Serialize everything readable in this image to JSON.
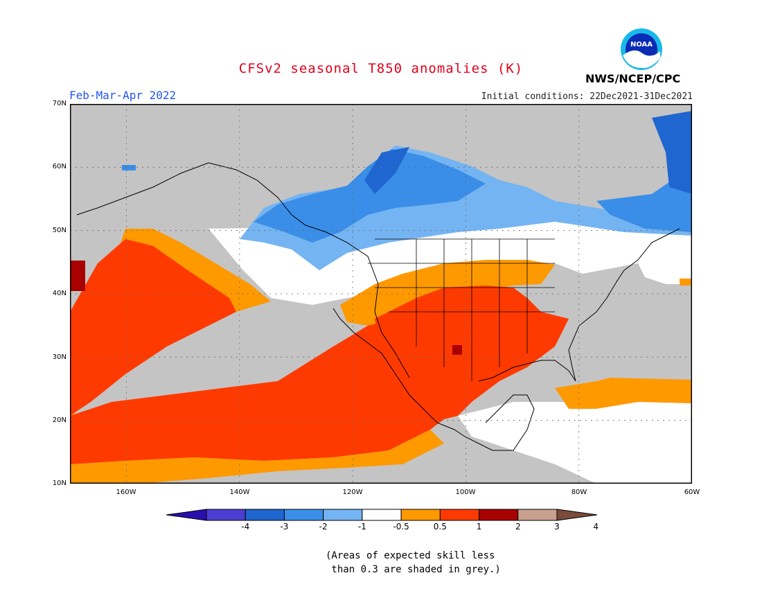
{
  "header": {
    "title": "CFSv2 seasonal T850 anomalies (K)",
    "period": "Feb-Mar-Apr 2022",
    "initial_conditions": "Initial conditions: 22Dec2021-31Dec2021",
    "organization": "NWS/NCEP/CPC",
    "logo_text": "NOAA"
  },
  "axes": {
    "lat_labels": [
      "70N",
      "60N",
      "50N",
      "40N",
      "30N",
      "20N",
      "10N"
    ],
    "lon_labels": [
      "160W",
      "140W",
      "120W",
      "100W",
      "80W",
      "60W"
    ]
  },
  "colorbar": {
    "tick_labels": [
      "-4",
      "-3",
      "-2",
      "-1",
      "-0.5",
      "0.5",
      "1",
      "2",
      "3",
      "4"
    ],
    "colors": [
      "#2a0fb0",
      "#4a3fd0",
      "#1f66d0",
      "#3a8ee8",
      "#74b4f2",
      "#ffffff",
      "#ff9900",
      "#ff3a00",
      "#a80000",
      "#c8a090",
      "#7a4a3a"
    ]
  },
  "map_colors": {
    "grey": "#c4c4c4",
    "white": "#ffffff",
    "orange": "#ff9900",
    "red": "#ff3a00",
    "dark_red": "#a80000",
    "blue_light": "#74b4f2",
    "blue_mid": "#3a8ee8",
    "blue_dark": "#1f66d0"
  },
  "note": "(Areas of expected skill less\n than 0.3 are shaded in grey.)"
}
